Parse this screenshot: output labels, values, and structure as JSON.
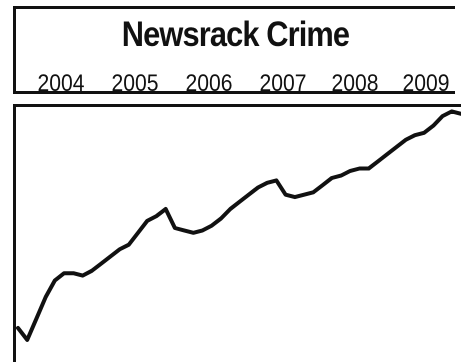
{
  "chart_data": {
    "type": "line",
    "title": "Newsrack Crime",
    "x_tick_labels": [
      "2004",
      "2005",
      "2006",
      "2007",
      "2008",
      "2009"
    ],
    "xlabel": "",
    "ylabel": "",
    "grid": false,
    "series": [
      {
        "values": [
          0.08,
          0.03,
          0.12,
          0.21,
          0.28,
          0.31,
          0.31,
          0.3,
          0.32,
          0.35,
          0.38,
          0.41,
          0.43,
          0.48,
          0.53,
          0.55,
          0.58,
          0.5,
          0.49,
          0.48,
          0.49,
          0.51,
          0.54,
          0.58,
          0.61,
          0.64,
          0.67,
          0.69,
          0.7,
          0.64,
          0.63,
          0.64,
          0.65,
          0.68,
          0.71,
          0.72,
          0.74,
          0.75,
          0.75,
          0.78,
          0.81,
          0.84,
          0.87,
          0.89,
          0.9,
          0.93,
          0.97,
          0.99,
          0.98
        ]
      }
    ],
    "ylim": [
      0,
      1
    ]
  },
  "colors": {
    "line": "#111111",
    "frame": "#111111",
    "background": "#ffffff"
  }
}
